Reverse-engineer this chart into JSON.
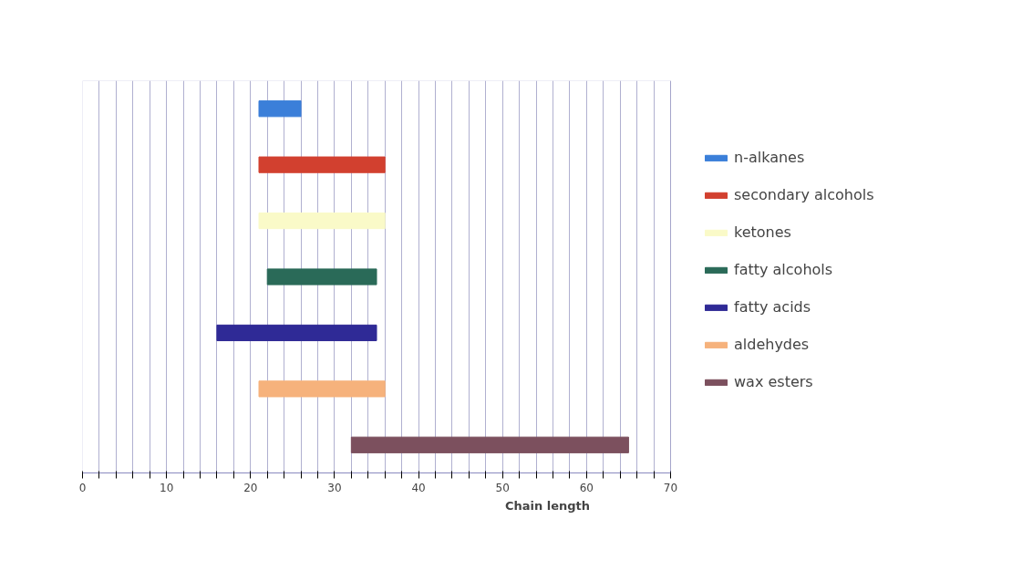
{
  "chart_data": {
    "type": "bar",
    "orientation": "horizontal",
    "xlabel": "Chain length",
    "categories": [
      null,
      null,
      null,
      null,
      null,
      null,
      null
    ],
    "series": [
      {
        "name": "n-alkanes",
        "color": "#3b7fd9",
        "base": [
          21,
          null,
          null,
          null,
          null,
          null,
          null
        ],
        "values": [
          5,
          null,
          null,
          null,
          null,
          null,
          null
        ]
      },
      {
        "name": "secondary alcohols",
        "color": "#d2402f",
        "base": [
          null,
          21,
          null,
          null,
          null,
          null,
          null
        ],
        "values": [
          null,
          15,
          null,
          null,
          null,
          null,
          null
        ]
      },
      {
        "name": "ketones",
        "color": "#fafac8",
        "base": [
          null,
          null,
          21,
          null,
          null,
          null,
          null
        ],
        "values": [
          null,
          null,
          15,
          null,
          null,
          null,
          null
        ]
      },
      {
        "name": "fatty alcohols",
        "color": "#2a6a58",
        "base": [
          null,
          null,
          null,
          22,
          null,
          null,
          null
        ],
        "values": [
          null,
          null,
          null,
          13,
          null,
          null,
          null
        ]
      },
      {
        "name": "fatty acids",
        "color": "#2f2a96",
        "base": [
          null,
          null,
          null,
          null,
          16,
          null,
          null
        ],
        "values": [
          null,
          null,
          null,
          null,
          19,
          null,
          null
        ]
      },
      {
        "name": "aldehydes",
        "color": "#f6b27c",
        "base": [
          null,
          null,
          null,
          null,
          null,
          21,
          null
        ],
        "values": [
          null,
          null,
          null,
          null,
          null,
          15,
          null
        ]
      },
      {
        "name": "wax esters",
        "color": "#7c505e",
        "base": [
          null,
          null,
          null,
          null,
          null,
          null,
          32
        ],
        "values": [
          null,
          null,
          null,
          null,
          null,
          null,
          33
        ]
      }
    ],
    "xlim": [
      0,
      70
    ],
    "xticks": [
      0,
      {
        "value": 2,
        "label": null
      },
      {
        "value": 4,
        "label": null
      },
      {
        "value": 6,
        "label": null
      },
      {
        "value": 8,
        "label": null
      },
      10,
      {
        "value": 12,
        "label": null
      },
      {
        "value": 14,
        "label": null
      },
      {
        "value": 16,
        "label": null
      },
      {
        "value": 18,
        "label": null
      },
      20,
      {
        "value": 22,
        "label": null
      },
      {
        "value": 24,
        "label": null
      },
      {
        "value": 26,
        "label": null
      },
      {
        "value": 28,
        "label": null
      },
      30,
      {
        "value": 32,
        "label": null
      },
      {
        "value": 34,
        "label": null
      },
      {
        "value": 36,
        "label": null
      },
      {
        "value": 38,
        "label": null
      },
      40,
      {
        "value": 42,
        "label": null
      },
      {
        "value": 44,
        "label": null
      },
      {
        "value": 46,
        "label": null
      },
      {
        "value": 48,
        "label": null
      },
      50,
      {
        "value": 52,
        "label": null
      },
      {
        "value": 54,
        "label": null
      },
      {
        "value": 56,
        "label": null
      },
      {
        "value": 58,
        "label": null
      },
      60,
      {
        "value": 62,
        "label": null
      },
      {
        "value": 64,
        "label": null
      },
      {
        "value": 66,
        "label": null
      },
      {
        "value": 68,
        "label": null
      },
      70
    ],
    "grid": "x",
    "legend": "right",
    "tick_labels": "x"
  }
}
